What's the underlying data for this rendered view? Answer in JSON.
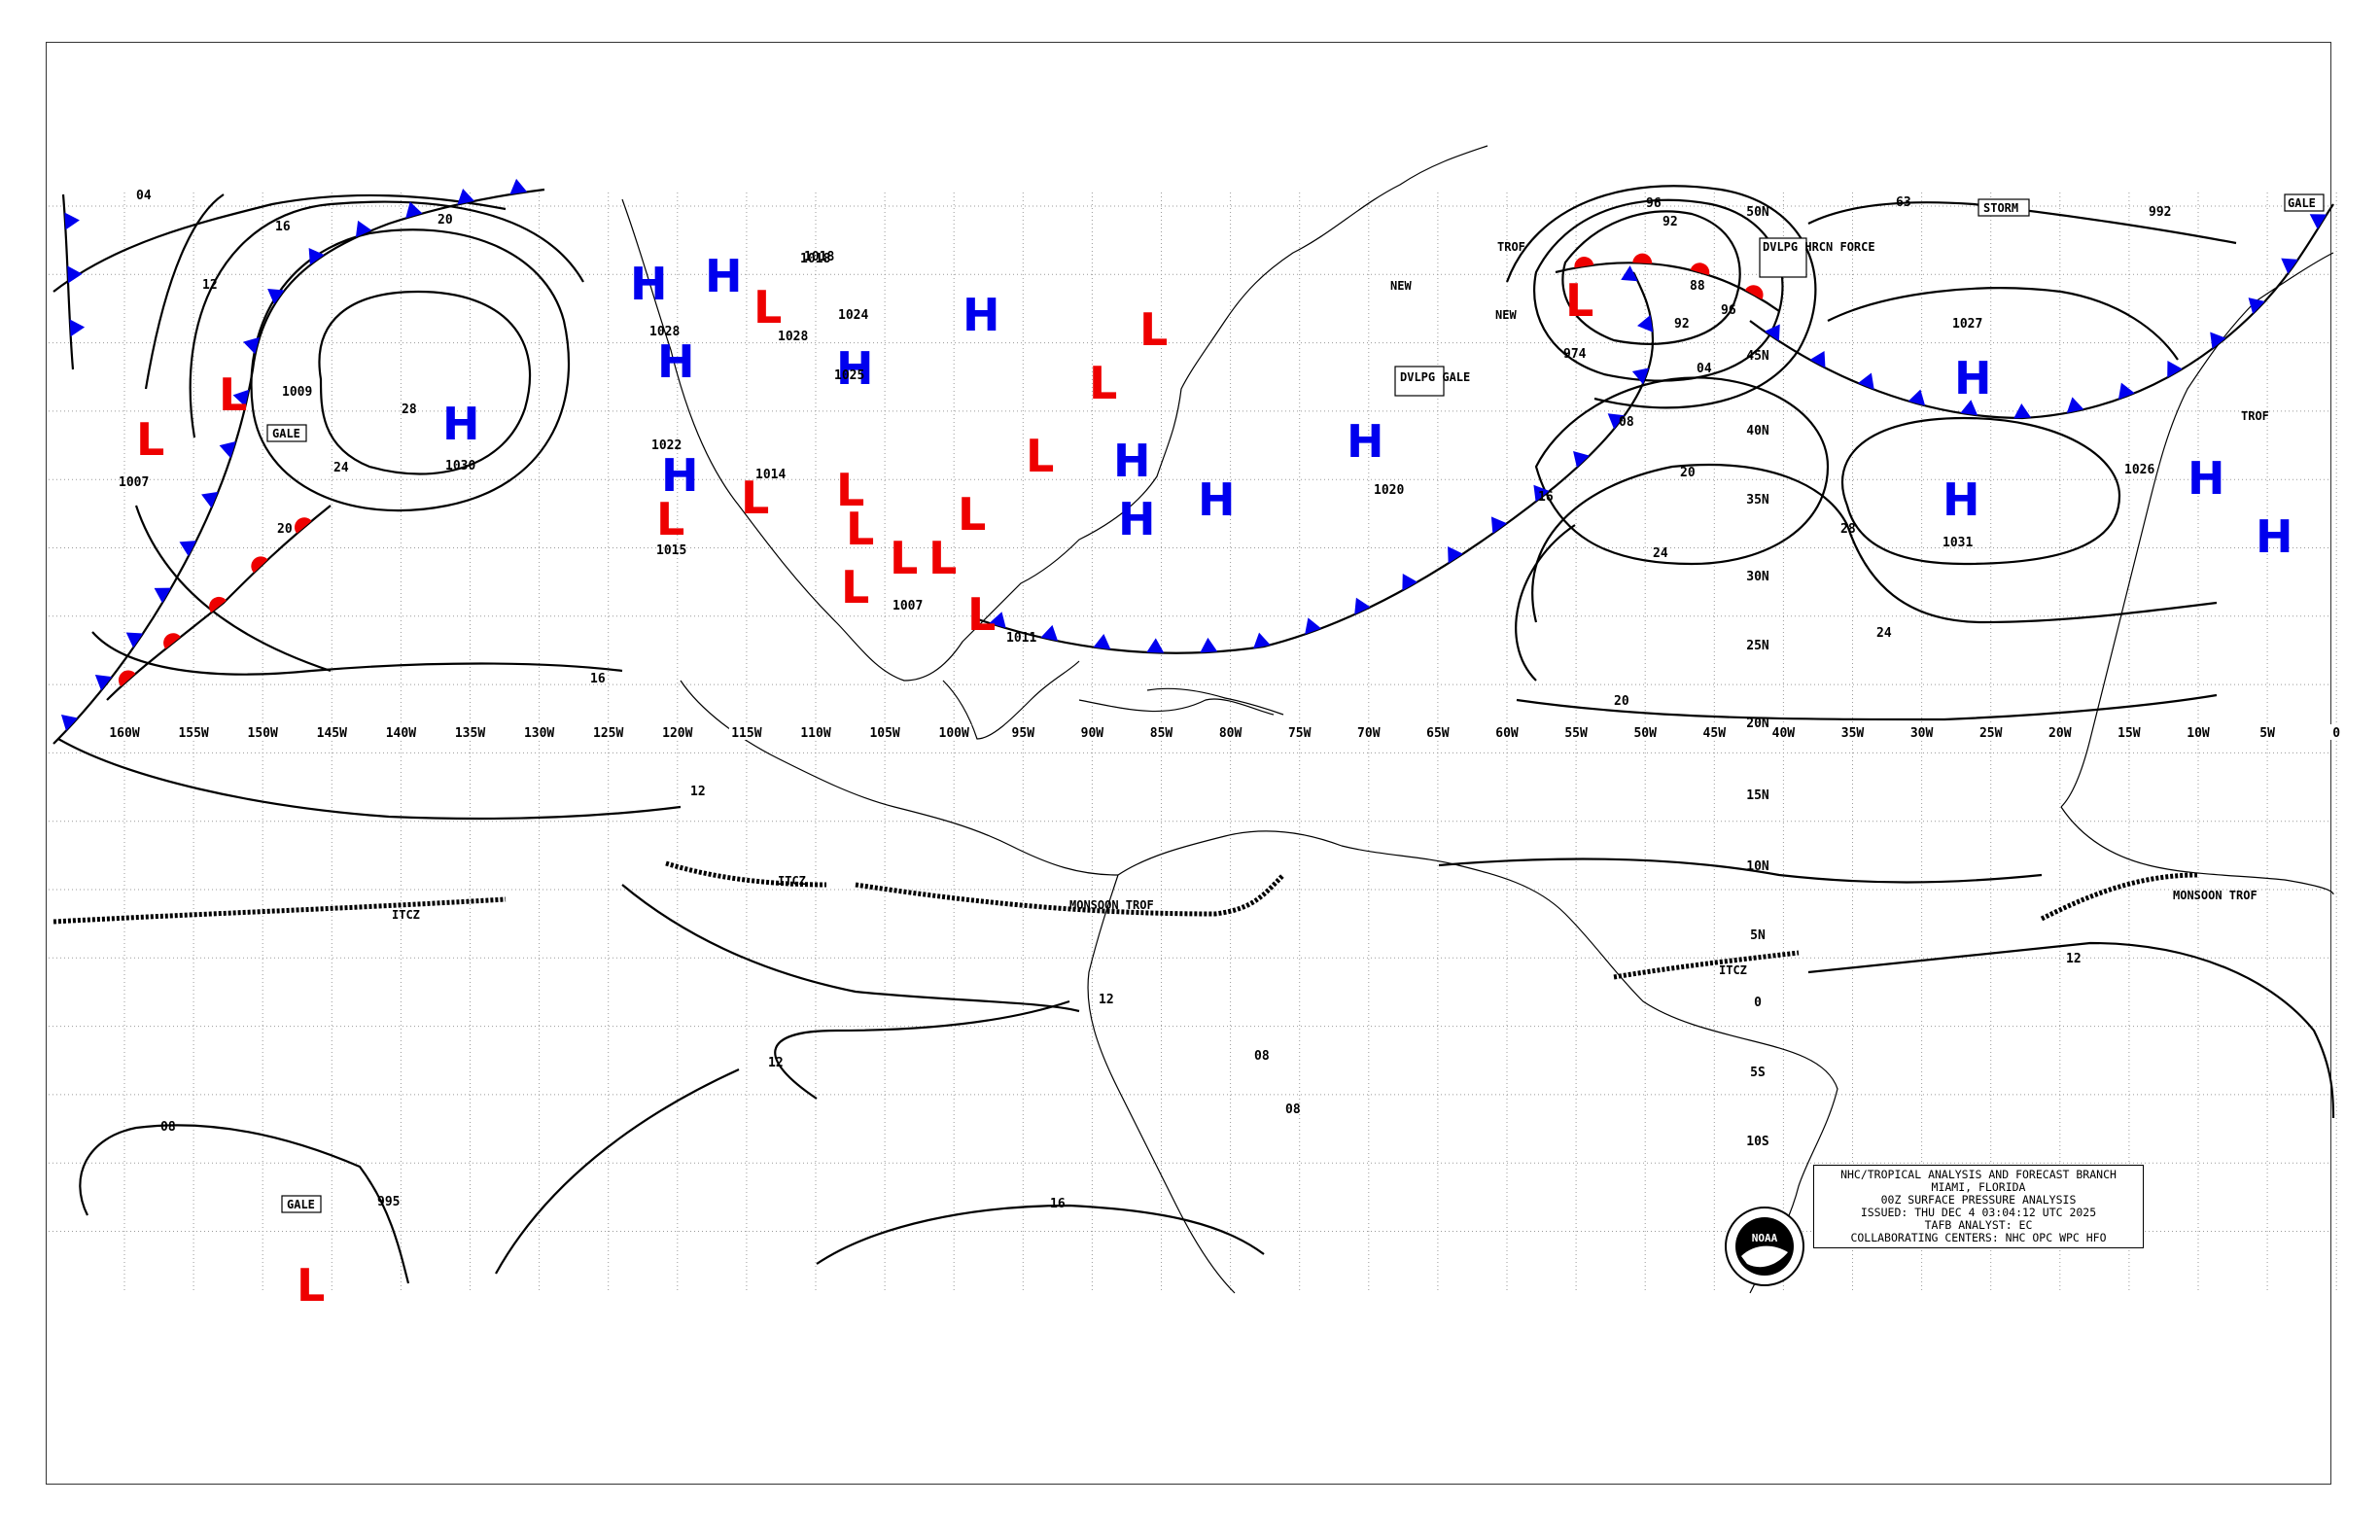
{
  "info_box": {
    "line1": "NHC/TROPICAL ANALYSIS AND FORECAST BRANCH",
    "line2": "MIAMI, FLORIDA",
    "line3": "00Z SURFACE PRESSURE ANALYSIS",
    "line4": "ISSUED: THU DEC 4 03:04:12 UTC 2025",
    "line5": "TAFB ANALYST: EC",
    "line6": "COLLABORATING CENTERS: NHC OPC WPC HFO"
  },
  "logo_text": "NOAA",
  "colors": {
    "high": "#0000ee",
    "low": "#ee0000",
    "cold_front": "#0000ee",
    "warm_front": "#ee0000",
    "line": "#000000"
  },
  "longitude_labels": [
    "160W",
    "155W",
    "150W",
    "145W",
    "140W",
    "135W",
    "130W",
    "125W",
    "120W",
    "115W",
    "110W",
    "105W",
    "100W",
    "95W",
    "90W",
    "85W",
    "80W",
    "75W",
    "70W",
    "65W",
    "60W",
    "55W",
    "50W",
    "45W",
    "40W",
    "35W",
    "30W",
    "25W",
    "20W",
    "15W",
    "10W",
    "5W",
    "0"
  ],
  "latitude_labels": [
    "30N",
    "35N",
    "40N",
    "45N",
    "50N",
    "25N",
    "20N",
    "15N",
    "10N",
    "5N",
    "0",
    "5S",
    "10S"
  ],
  "highs": [
    {
      "name": "H",
      "pressure": "1030"
    },
    {
      "name": "H",
      "pressure": "1028"
    },
    {
      "name": "H",
      "pressure": "1022"
    },
    {
      "name": "H",
      "pressure": "1025"
    },
    {
      "name": "H",
      "pressure": "1020"
    },
    {
      "name": "H",
      "pressure": "1027"
    },
    {
      "name": "H",
      "pressure": "1031"
    },
    {
      "name": "H",
      "pressure": "1026"
    }
  ],
  "lows": [
    {
      "name": "L",
      "pressure": "1007"
    },
    {
      "name": "L",
      "pressure": "1009"
    },
    {
      "name": "L",
      "pressure": "1015"
    },
    {
      "name": "L",
      "pressure": "1014"
    },
    {
      "name": "L",
      "pressure": "1007"
    },
    {
      "name": "L",
      "pressure": "1011"
    },
    {
      "name": "L",
      "pressure": "974"
    },
    {
      "name": "L",
      "pressure": "995"
    },
    {
      "name": "L",
      "pressure": "1018"
    }
  ],
  "warnings": [
    "GALE",
    "GALE",
    "DVLPG GALE",
    "DVLPG HRCN FORCE",
    "STORM",
    "GALE"
  ],
  "feature_labels": [
    "ITCZ",
    "ITCZ",
    "MONSOON TROF",
    "ITCZ",
    "MONSOON TROF",
    "TROF",
    "TROF",
    "NEW",
    "NEW"
  ],
  "isobar_values": [
    "04",
    "16",
    "12",
    "20",
    "24",
    "28",
    "20",
    "16",
    "12",
    "12",
    "12",
    "16",
    "08",
    "08",
    "08",
    "12",
    "16",
    "20",
    "24",
    "28",
    "20",
    "24",
    "04",
    "08",
    "96",
    "92",
    "88",
    "96",
    "92",
    "63",
    "992",
    "1018",
    "1024",
    "1028"
  ]
}
